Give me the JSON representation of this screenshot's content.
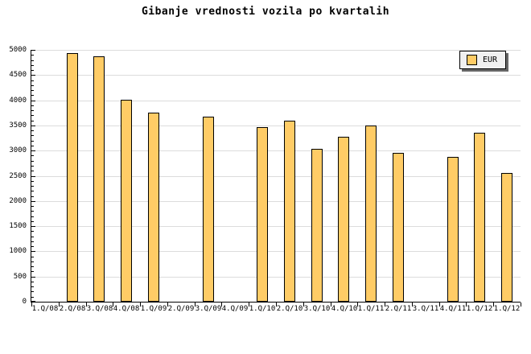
{
  "title": "Gibanje vrednosti vozila po kvartalih",
  "legend": {
    "label": "EUR"
  },
  "colors": {
    "canvas_bg": "#FFFFFF",
    "text": "#000000",
    "axis": "#000000",
    "grid_line": "#DCDCDC",
    "bar_fill": "#FFCC66",
    "bar_border": "#000000",
    "legend_bg": "#F0F0F0",
    "legend_shadow": "#666666"
  },
  "chart_data": {
    "type": "bar",
    "title": "Gibanje vrednosti vozila po kvartalih",
    "xlabel": "",
    "ylabel": "",
    "categories": [
      "1.Q/08",
      "2.Q/08",
      "3.Q/08",
      "4.Q/08",
      "1.Q/09",
      "2.Q/09",
      "3.Q/09",
      "4.Q/09",
      "1.Q/10",
      "2.Q/10",
      "3.Q/10",
      "4.Q/10",
      "1.Q/11",
      "2.Q/11",
      "3.Q/11",
      "4.Q/11",
      "1.Q/12",
      "1.Q/12"
    ],
    "series": [
      {
        "name": "EUR",
        "values": [
          null,
          4940,
          4880,
          4010,
          3750,
          null,
          3670,
          null,
          3470,
          3600,
          3030,
          3280,
          3500,
          2950,
          null,
          2880,
          3350,
          2560
        ]
      }
    ],
    "ylim": [
      0,
      5000
    ],
    "yticks": [
      0,
      500,
      1000,
      1500,
      2000,
      2500,
      3000,
      3500,
      4000,
      4500,
      5000
    ],
    "y_minor_tick_step": 100,
    "grid": "horizontal-major",
    "legend_position": "top-right",
    "bar_color": "#FFCC66"
  }
}
